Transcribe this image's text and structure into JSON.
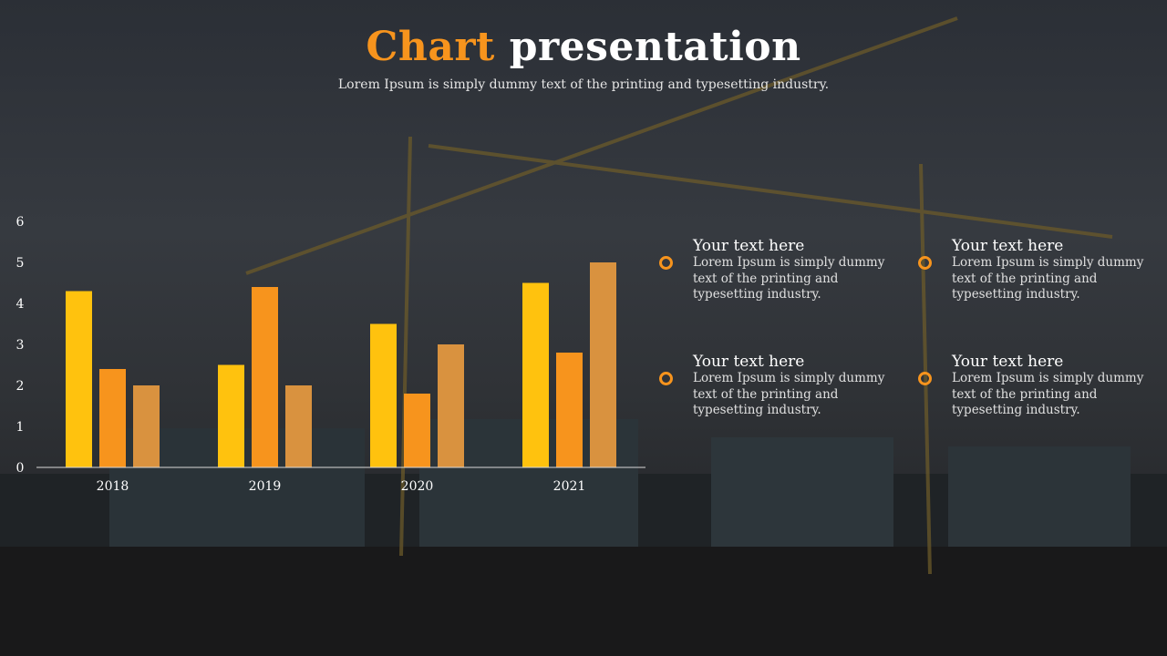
{
  "slide": {
    "title_accent": "Chart",
    "title_rest": "presentation",
    "subtitle": "Lorem Ipsum is simply dummy text of the printing and typesetting industry."
  },
  "info": [
    {
      "heading": "Your text here",
      "text": "Lorem Ipsum is simply dummy text of the printing and typesetting industry."
    },
    {
      "heading": "Your text here",
      "text": "Lorem Ipsum is simply dummy text of the printing and typesetting industry."
    },
    {
      "heading": "Your text here",
      "text": "Lorem Ipsum is simply dummy text of the printing and typesetting industry."
    },
    {
      "heading": "Your text here",
      "text": "Lorem Ipsum is simply dummy text of the printing and typesetting industry."
    }
  ],
  "colors": {
    "accent": "#f7941d",
    "series": [
      "#ffc20e",
      "#f7941d",
      "#d9923f"
    ]
  },
  "chart_data": {
    "type": "bar",
    "categories": [
      "2018",
      "2019",
      "2020",
      "2021"
    ],
    "series": [
      {
        "values": [
          4.3,
          2.5,
          3.5,
          4.5
        ]
      },
      {
        "values": [
          2.4,
          4.4,
          1.8,
          2.8
        ]
      },
      {
        "values": [
          2.0,
          2.0,
          3.0,
          5.0
        ]
      }
    ],
    "yticks": [
      0,
      1,
      2,
      3,
      4,
      5,
      6
    ],
    "ylim": [
      0,
      6
    ],
    "grid": false,
    "legend": "none"
  }
}
